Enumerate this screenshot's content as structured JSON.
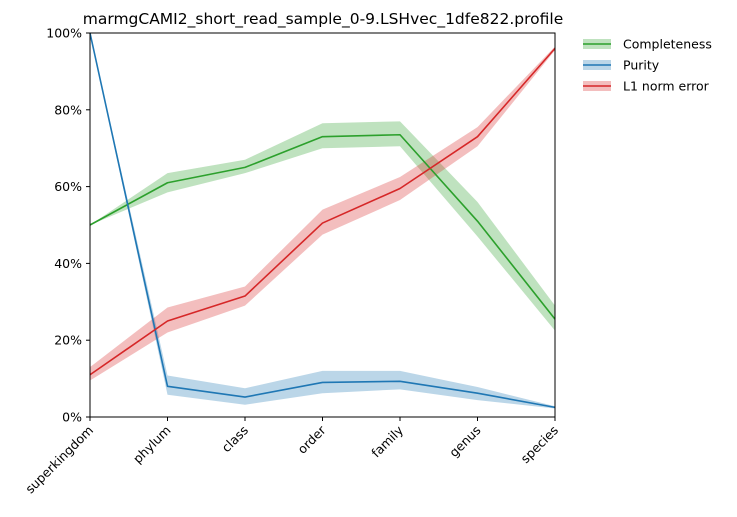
{
  "chart_data": {
    "type": "line",
    "title": "marmgCAMI2_short_read_sample_0-9.LSHvec_1dfe822.profile",
    "xlabel": "",
    "ylabel": "",
    "categories": [
      "superkingdom",
      "phylum",
      "class",
      "order",
      "family",
      "genus",
      "species"
    ],
    "ylim": [
      0,
      100
    ],
    "yticks": [
      "0%",
      "20%",
      "40%",
      "60%",
      "80%",
      "100%"
    ],
    "legend_position": "outside-top-right",
    "grid": false,
    "series": [
      {
        "name": "Completeness",
        "color": "#2ca02c",
        "values": [
          50,
          61,
          65,
          73,
          73.5,
          51,
          25.5
        ],
        "lower": [
          50,
          58.5,
          63.5,
          70,
          70.5,
          47,
          22.5
        ],
        "upper": [
          50,
          63.5,
          67,
          76.5,
          77,
          56,
          29
        ]
      },
      {
        "name": "Purity",
        "color": "#1f77b4",
        "values": [
          100,
          8,
          5.2,
          9,
          9.3,
          6.2,
          2.5
        ],
        "lower": [
          100,
          5.8,
          3.2,
          6.2,
          7.2,
          4.4,
          2.2
        ],
        "upper": [
          100,
          10.8,
          7.5,
          12,
          12,
          7.8,
          2.8
        ]
      },
      {
        "name": "L1 norm error",
        "color": "#d62728",
        "values": [
          11,
          25,
          31.5,
          50.5,
          59.5,
          73,
          96
        ],
        "lower": [
          9.5,
          22,
          29,
          47.5,
          56.5,
          70.5,
          95.5
        ],
        "upper": [
          13,
          28.5,
          34,
          54,
          62.5,
          75.5,
          96.5
        ]
      }
    ]
  }
}
